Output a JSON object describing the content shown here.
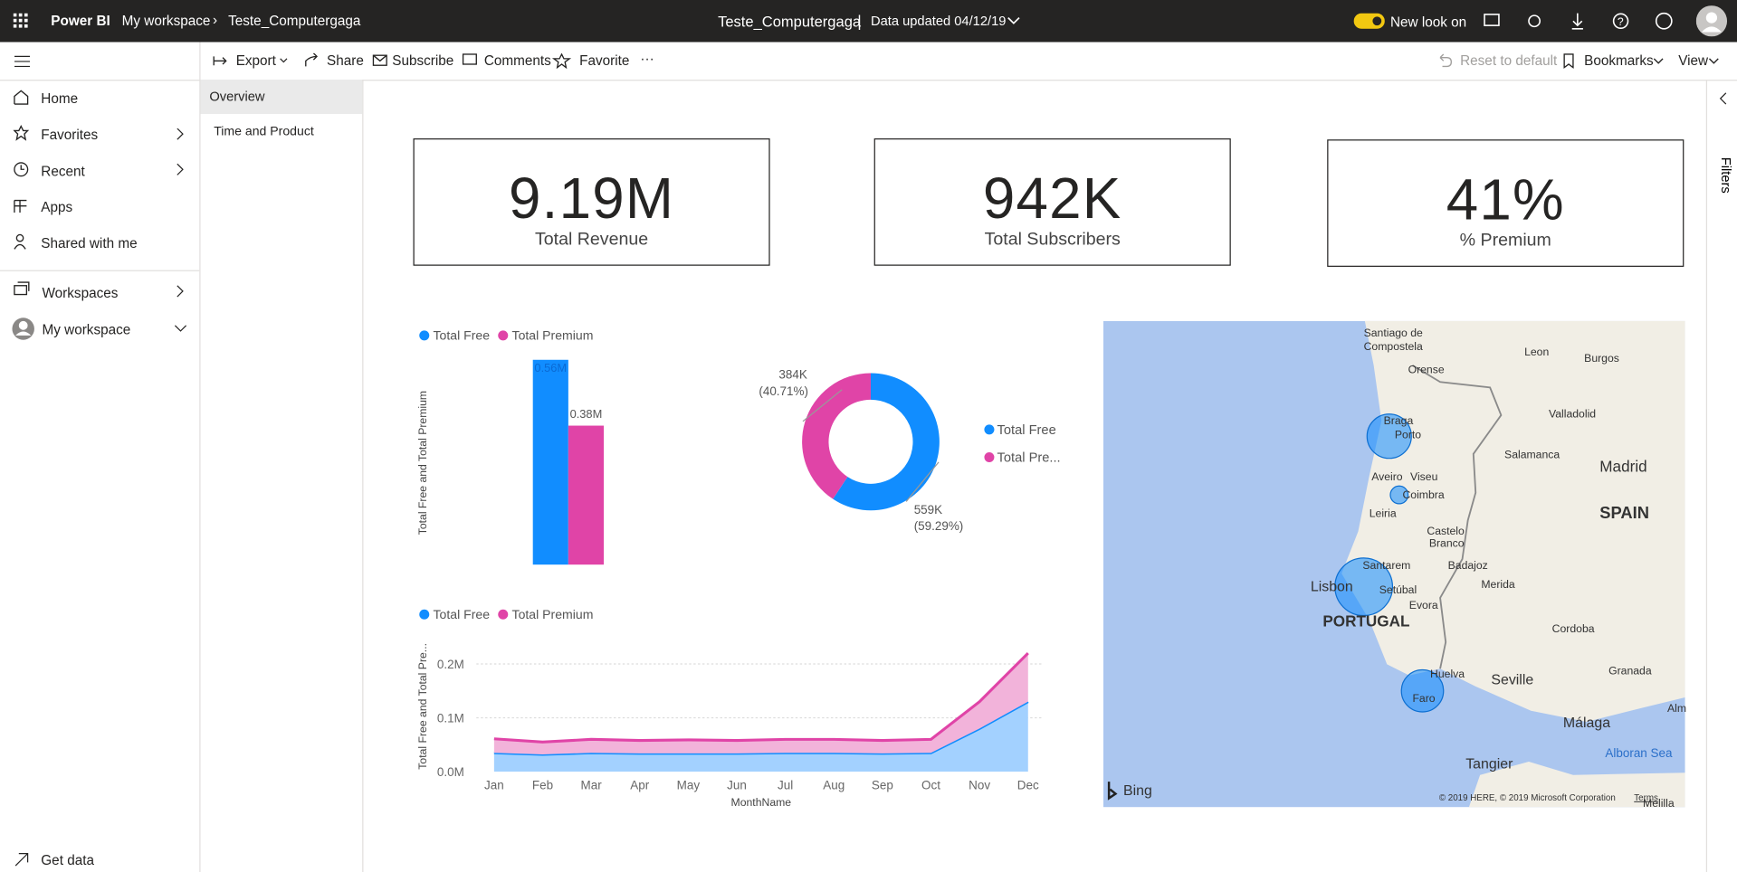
{
  "header": {
    "app": "Power BI",
    "breadcrumb": [
      "My workspace",
      "Teste_Computergaga"
    ],
    "report_title": "Teste_Computergaga",
    "separator": "|",
    "data_updated": "Data updated 04/12/19",
    "new_look": "New look on"
  },
  "toolbar": {
    "left": [
      "Export",
      "Share",
      "Subscribe",
      "Comments",
      "Favorite"
    ],
    "more": "···",
    "right": [
      "Reset to default",
      "Bookmarks",
      "View"
    ]
  },
  "nav": {
    "items": [
      "Home",
      "Favorites",
      "Recent",
      "Apps",
      "Shared with me",
      "Workspaces",
      "My workspace"
    ],
    "footer": "Get data"
  },
  "pages": [
    "Overview",
    "Time and Product"
  ],
  "filters": "Filters",
  "cards": [
    {
      "value": "9.19M",
      "label": "Total Revenue"
    },
    {
      "value": "942K",
      "label": "Total Subscribers"
    },
    {
      "value": "41%",
      "label": "% Premium"
    }
  ],
  "bar_chart": {
    "type": "bar",
    "y_label": "Total Free and Total Premium",
    "series": [
      {
        "name": "Total Free",
        "color": "#118dff",
        "values": [
          0.56
        ],
        "value_labels": [
          "0.56M"
        ]
      },
      {
        "name": "Total Premium",
        "color": "#e044a7",
        "values": [
          0.38
        ],
        "value_labels": [
          "0.38M"
        ]
      }
    ]
  },
  "donut_chart": {
    "type": "donut",
    "categories": [
      "Total Free",
      "Total Pre..."
    ],
    "colors": [
      "#118dff",
      "#e044a7"
    ],
    "values": [
      559000,
      384000
    ],
    "value_labels": [
      "559K",
      "384K"
    ],
    "percent_labels": [
      "(59.29%)",
      "(40.71%)"
    ]
  },
  "area_chart": {
    "type": "stacked_area",
    "x_label": "MonthName",
    "y_label": "Total Free and Total Pre...",
    "categories": [
      "Jan",
      "Feb",
      "Mar",
      "Apr",
      "May",
      "Jun",
      "Jul",
      "Aug",
      "Sep",
      "Oct",
      "Nov",
      "Dec"
    ],
    "ylim": [
      0,
      0.22
    ],
    "yticks": [
      {
        "value": 0,
        "label": "0.0M"
      },
      {
        "value": 0.1,
        "label": "0.1M"
      },
      {
        "value": 0.2,
        "label": "0.2M"
      }
    ],
    "grid": true,
    "series": [
      {
        "name": "Total Free",
        "color": "#118dff",
        "values": [
          0.035,
          0.032,
          0.035,
          0.034,
          0.034,
          0.034,
          0.035,
          0.035,
          0.034,
          0.035,
          0.08,
          0.13
        ]
      },
      {
        "name": "Total Premium",
        "color": "#e044a7",
        "values": [
          0.026,
          0.023,
          0.025,
          0.024,
          0.025,
          0.024,
          0.025,
          0.025,
          0.024,
          0.025,
          0.05,
          0.09
        ]
      }
    ]
  },
  "map": {
    "labels": [
      "Santiago de",
      "Compostela",
      "Orense",
      "Leon",
      "Burgos",
      "Braga",
      "Porto",
      "Valladolid",
      "Aveiro",
      "Viseu",
      "Salamanca",
      "Madrid",
      "Coimbra",
      "SPAIN",
      "Leiria",
      "Castelo",
      "Branco",
      "Santarem",
      "Badajoz",
      "Lisbon",
      "Setúbal",
      "Merida",
      "Evora",
      "PORTUGAL",
      "Cordoba",
      "Huelva",
      "Seville",
      "Granada",
      "Faro",
      "Málaga",
      "Alm",
      "Alboran Sea",
      "Tangier",
      "Melilla"
    ],
    "brand": "Bing",
    "copyright": "© 2019 HERE, © 2019 Microsoft Corporation",
    "terms": "Terms"
  }
}
